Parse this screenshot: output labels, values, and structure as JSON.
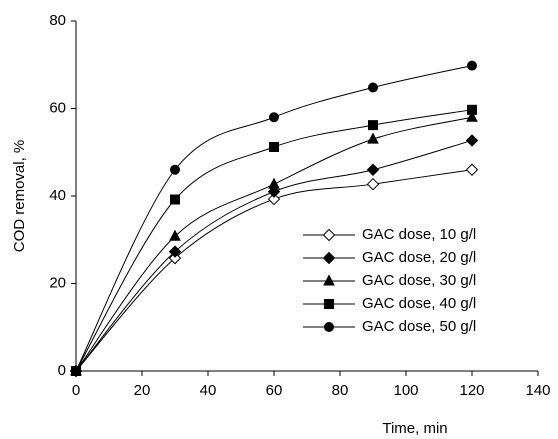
{
  "chart_data": {
    "type": "line",
    "x_label": "Time, min",
    "y_label": "COD removal, %",
    "x": [
      0,
      30,
      60,
      90,
      120
    ],
    "series": [
      {
        "name": "GAC dose, 10 g/l",
        "color": "#000000",
        "marker": "diamond-open",
        "values": [
          0,
          25.8,
          39.3,
          42.7,
          46
        ]
      },
      {
        "name": "GAC dose, 20 g/l",
        "color": "#000000",
        "marker": "diamond",
        "values": [
          0,
          27.3,
          41,
          46,
          52.7
        ]
      },
      {
        "name": "GAC dose, 30 g/l",
        "color": "#000000",
        "marker": "triangle",
        "values": [
          0,
          30.8,
          42.7,
          53,
          58
        ]
      },
      {
        "name": "GAC dose, 40 g/l",
        "color": "#000000",
        "marker": "square",
        "values": [
          0,
          39.2,
          51.2,
          56.2,
          59.7
        ]
      },
      {
        "name": "GAC dose, 50 g/l",
        "color": "#000000",
        "marker": "circle",
        "values": [
          0,
          46,
          58,
          64.8,
          69.8
        ]
      }
    ],
    "xlim": [
      0,
      140
    ],
    "xticks": [
      0,
      20,
      40,
      60,
      80,
      100,
      120,
      140
    ],
    "ylim": [
      0,
      80
    ],
    "yticks": [
      0,
      20,
      40,
      60,
      80
    ],
    "grid": false,
    "smooth": true,
    "legend": "right"
  }
}
